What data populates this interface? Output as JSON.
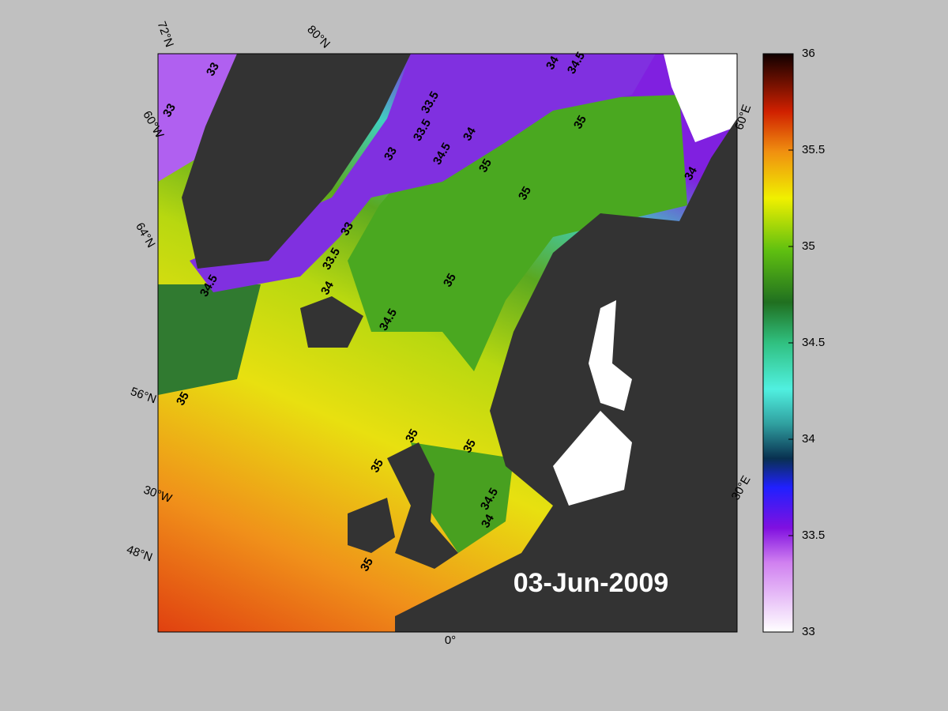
{
  "map": {
    "date": "03-Jun-2009",
    "graticule_labels": [
      "72°N",
      "80°N",
      "60°W",
      "64°N",
      "56°N",
      "30°W",
      "48°N",
      "0°",
      "30°E",
      "60°E"
    ],
    "contour_labels": [
      "33",
      "33",
      "33.5",
      "33.5",
      "33",
      "34",
      "34",
      "34.5",
      "35",
      "35",
      "33",
      "33.5",
      "34.5",
      "34",
      "35",
      "34.5",
      "35",
      "35",
      "35",
      "35",
      "35",
      "34.5",
      "34",
      "35",
      "34",
      "34.5"
    ]
  },
  "colorbar": {
    "lim": [
      33,
      36
    ],
    "ticks": [
      33,
      33.5,
      34,
      34.5,
      35,
      35.5,
      36
    ]
  }
}
